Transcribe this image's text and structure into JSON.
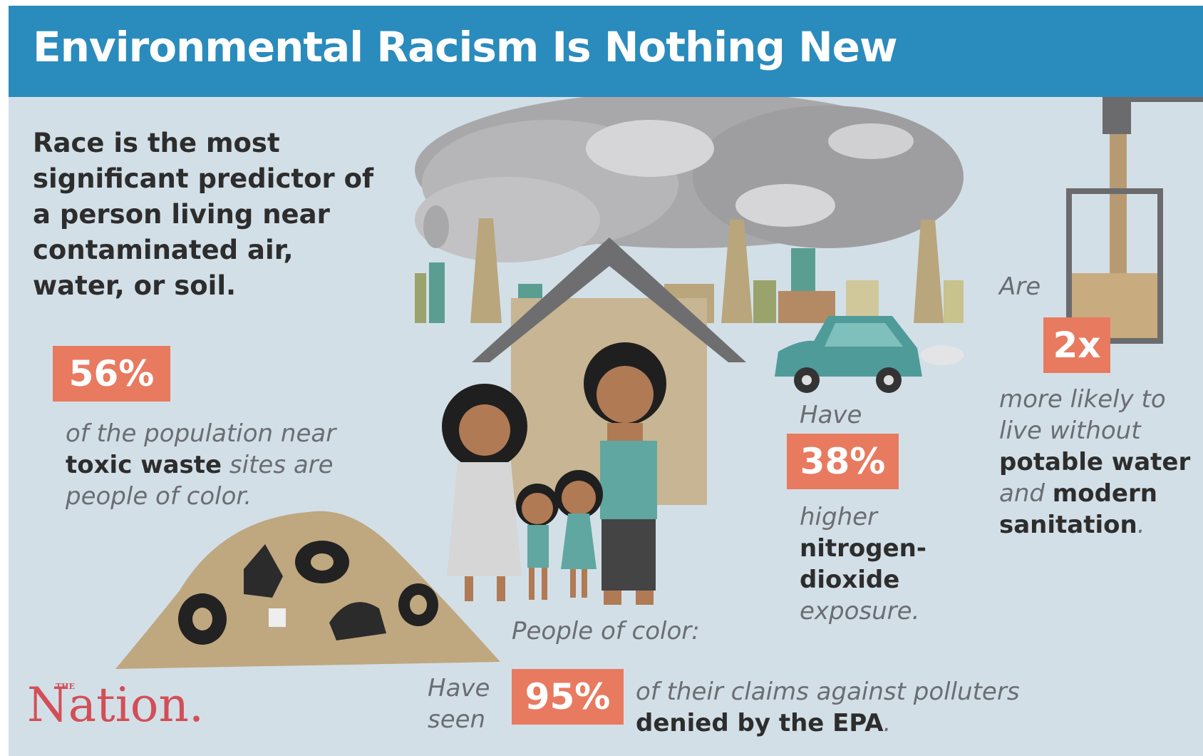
{
  "header": {
    "title": "Environmental Racism Is Nothing New"
  },
  "intro": "Race is the most significant predictor of a person living near contaminated air, water, or soil.",
  "stat_toxic": {
    "badge": "56%",
    "text_1": "of the population near",
    "bold_1": "toxic waste",
    "text_2": "sites are people of color."
  },
  "stat_no2": {
    "lead": "Have",
    "badge": "38%",
    "text_1": "higher",
    "bold_1": "nitrogen-dioxide",
    "text_2": "exposure."
  },
  "stat_water": {
    "lead": "Are",
    "badge": "2x",
    "text_1": "more likely to live without",
    "bold_1": "potable water",
    "text_2": "and",
    "bold_2": "modern sanitation",
    "text_3": "."
  },
  "people_label": "People of color:",
  "stat_epa": {
    "lead": "Have seen",
    "badge": "95%",
    "text_1": "of their claims against polluters",
    "bold_1": "denied by the EPA",
    "text_2": "."
  },
  "logo": {
    "small": "THE",
    "name": "Nation."
  }
}
